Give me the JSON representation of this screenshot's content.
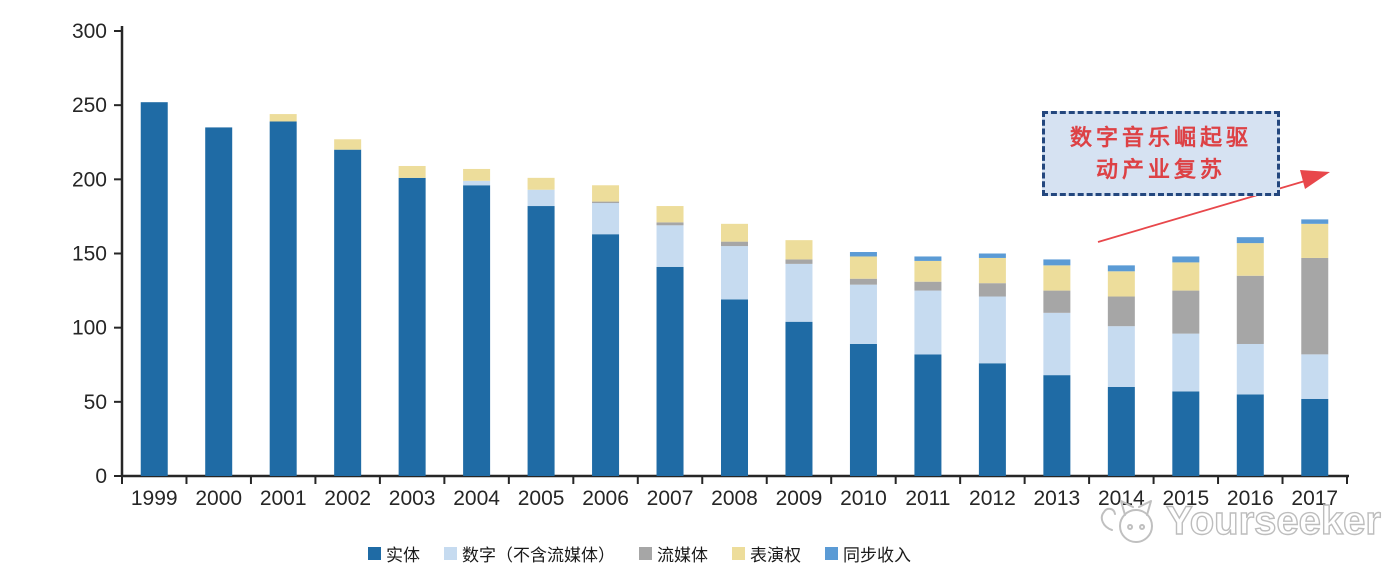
{
  "chart_data": {
    "type": "bar",
    "variant": "stacked",
    "title": "",
    "xlabel": "",
    "ylabel": "",
    "ylim": [
      0,
      300
    ],
    "yticks": [
      0,
      50,
      100,
      150,
      200,
      250,
      300
    ],
    "grid": false,
    "legend_position": "bottom",
    "categories": [
      "1999",
      "2000",
      "2001",
      "2002",
      "2003",
      "2004",
      "2005",
      "2006",
      "2007",
      "2008",
      "2009",
      "2010",
      "2011",
      "2012",
      "2013",
      "2014",
      "2015",
      "2016",
      "2017"
    ],
    "series": [
      {
        "key": "physical",
        "name": "实体",
        "color": "#1F6BA5",
        "values": [
          252,
          235,
          239,
          220,
          201,
          196,
          182,
          163,
          141,
          119,
          104,
          89,
          82,
          76,
          68,
          60,
          57,
          55,
          52
        ]
      },
      {
        "key": "digital-excl-streaming",
        "name": "数字（不含流媒体）",
        "color": "#C6DBF0",
        "values": [
          0,
          0,
          0,
          0,
          0,
          3,
          11,
          21,
          28,
          36,
          39,
          40,
          43,
          45,
          42,
          41,
          39,
          34,
          30
        ]
      },
      {
        "key": "streaming",
        "name": "流媒体",
        "color": "#A6A6A6",
        "values": [
          0,
          0,
          0,
          0,
          0,
          0,
          0,
          1,
          2,
          3,
          3,
          4,
          6,
          9,
          15,
          20,
          29,
          46,
          65
        ]
      },
      {
        "key": "performance-rights",
        "name": "表演权",
        "color": "#EDDD9B",
        "values": [
          0,
          0,
          5,
          7,
          8,
          8,
          8,
          11,
          11,
          12,
          13,
          15,
          14,
          17,
          17,
          17,
          19,
          22,
          23
        ]
      },
      {
        "key": "sync-revenue",
        "name": "同步收入",
        "color": "#5B9BD5",
        "values": [
          0,
          0,
          0,
          0,
          0,
          0,
          0,
          0,
          0,
          0,
          0,
          3,
          3,
          3,
          4,
          4,
          4,
          4,
          3
        ]
      }
    ]
  },
  "annotation": {
    "line1": "数字音乐崛起驱",
    "line2": "动产业复苏",
    "box_fill": "#D6E2F2",
    "border_color": "#24477E",
    "text_color": "#DD4145",
    "arrow_color": "#E8474B"
  },
  "axis": {
    "line_color": "#262626",
    "label_color": "#262626"
  },
  "watermark": {
    "text": "Yourseeker",
    "logo": "cat-logo-icon",
    "color": "#bdbdbd"
  }
}
